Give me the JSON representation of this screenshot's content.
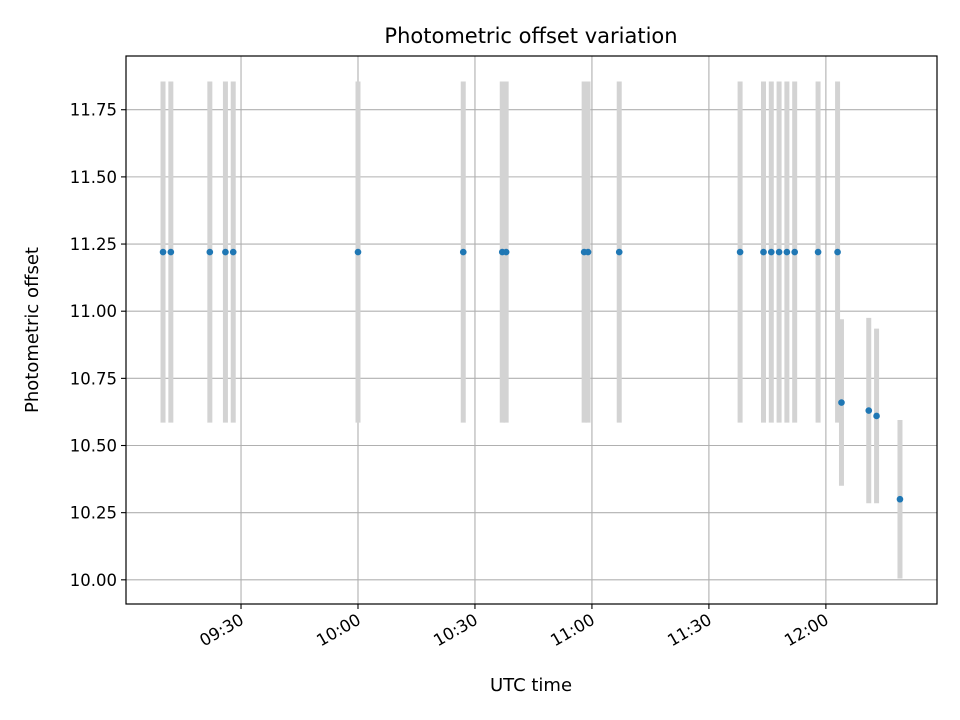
{
  "chart_data": {
    "type": "scatter",
    "title": "Photometric offset variation",
    "xlabel": "UTC time",
    "ylabel": "Photometric offset",
    "x_type": "time",
    "xlim": [
      "09:00:30",
      "12:28:30"
    ],
    "ylim": [
      9.91,
      11.95
    ],
    "x_ticks": [
      "09:30",
      "10:00",
      "10:30",
      "11:00",
      "11:30",
      "12:00"
    ],
    "y_ticks": [
      "10.00",
      "10.25",
      "10.50",
      "10.75",
      "11.00",
      "11.25",
      "11.50",
      "11.75"
    ],
    "grid": true,
    "legend": "none",
    "colors": {
      "marker": "#1f77b4",
      "errorbar": "#d3d3d3",
      "grid": "#b0b0b0",
      "axes": "#000000"
    },
    "series": [
      {
        "points": [
          {
            "x": "09:10",
            "y": 11.22,
            "yerr": 0.635
          },
          {
            "x": "09:12",
            "y": 11.22,
            "yerr": 0.635
          },
          {
            "x": "09:22",
            "y": 11.22,
            "yerr": 0.635
          },
          {
            "x": "09:26",
            "y": 11.22,
            "yerr": 0.635
          },
          {
            "x": "09:28",
            "y": 11.22,
            "yerr": 0.635
          },
          {
            "x": "10:00",
            "y": 11.22,
            "yerr": 0.635
          },
          {
            "x": "10:27",
            "y": 11.22,
            "yerr": 0.635
          },
          {
            "x": "10:37",
            "y": 11.22,
            "yerr": 0.635
          },
          {
            "x": "10:38",
            "y": 11.22,
            "yerr": 0.635
          },
          {
            "x": "10:58",
            "y": 11.22,
            "yerr": 0.635
          },
          {
            "x": "10:59",
            "y": 11.22,
            "yerr": 0.635
          },
          {
            "x": "11:07",
            "y": 11.22,
            "yerr": 0.635
          },
          {
            "x": "11:38",
            "y": 11.22,
            "yerr": 0.635
          },
          {
            "x": "11:44",
            "y": 11.22,
            "yerr": 0.635
          },
          {
            "x": "11:46",
            "y": 11.22,
            "yerr": 0.635
          },
          {
            "x": "11:48",
            "y": 11.22,
            "yerr": 0.635
          },
          {
            "x": "11:50",
            "y": 11.22,
            "yerr": 0.635
          },
          {
            "x": "11:52",
            "y": 11.22,
            "yerr": 0.635
          },
          {
            "x": "11:58",
            "y": 11.22,
            "yerr": 0.635
          },
          {
            "x": "12:03",
            "y": 11.22,
            "yerr": 0.635
          },
          {
            "x": "12:04",
            "y": 10.66,
            "yerr": 0.31
          },
          {
            "x": "12:11",
            "y": 10.63,
            "yerr": 0.345
          },
          {
            "x": "12:13",
            "y": 10.61,
            "yerr": 0.325
          },
          {
            "x": "12:19",
            "y": 10.3,
            "yerr": 0.295
          }
        ]
      }
    ]
  }
}
